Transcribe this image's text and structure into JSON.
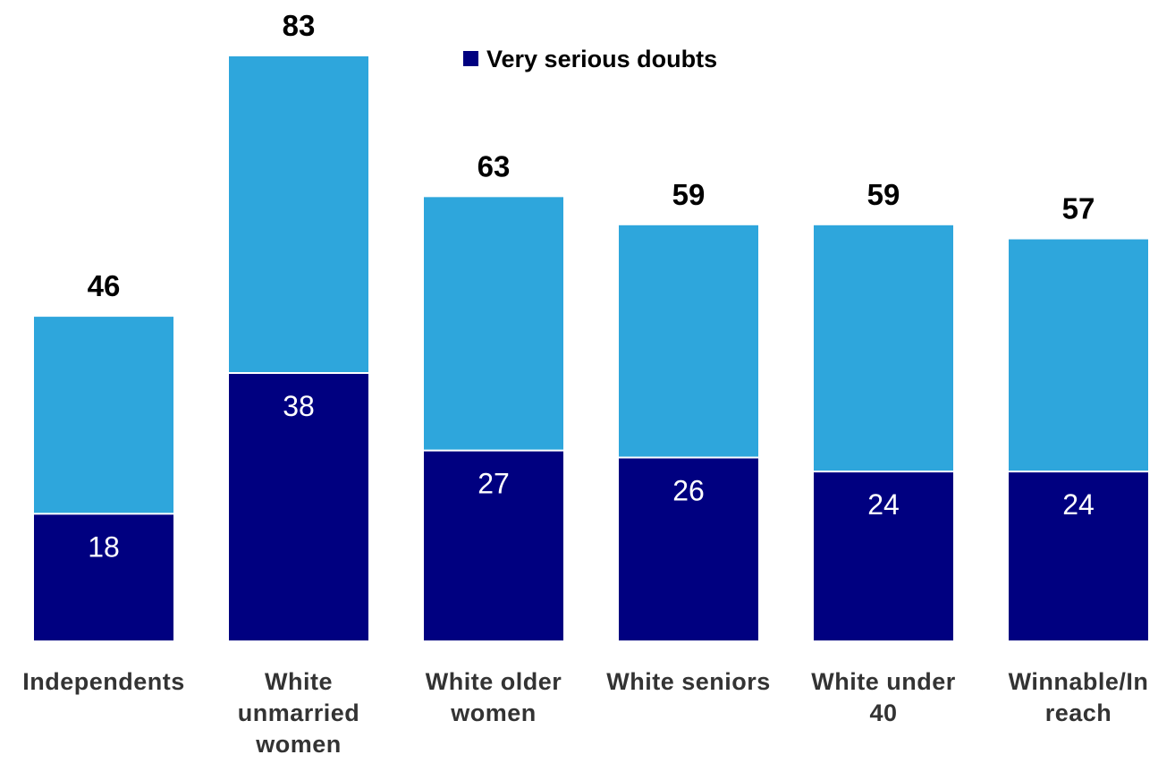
{
  "chart_data": {
    "type": "bar",
    "stacked": true,
    "categories": [
      [
        "Independents"
      ],
      [
        "White",
        "unmarried",
        "women"
      ],
      [
        "White older",
        "women"
      ],
      [
        "White seniors"
      ],
      [
        "White under",
        "40"
      ],
      [
        "Winnable/In",
        "reach"
      ]
    ],
    "series": [
      {
        "name": "Very serious doubts",
        "values": [
          18,
          38,
          27,
          26,
          24,
          24
        ],
        "color": "#000080"
      },
      {
        "values": [
          28,
          45,
          36,
          33,
          35,
          33
        ],
        "color": "#2ea6dc"
      }
    ],
    "totals": [
      46,
      83,
      63,
      59,
      59,
      57
    ],
    "ylim": [
      0,
      83
    ],
    "legend": {
      "position": "top-center",
      "entries": [
        "Very serious doubts"
      ]
    },
    "grid": false
  }
}
